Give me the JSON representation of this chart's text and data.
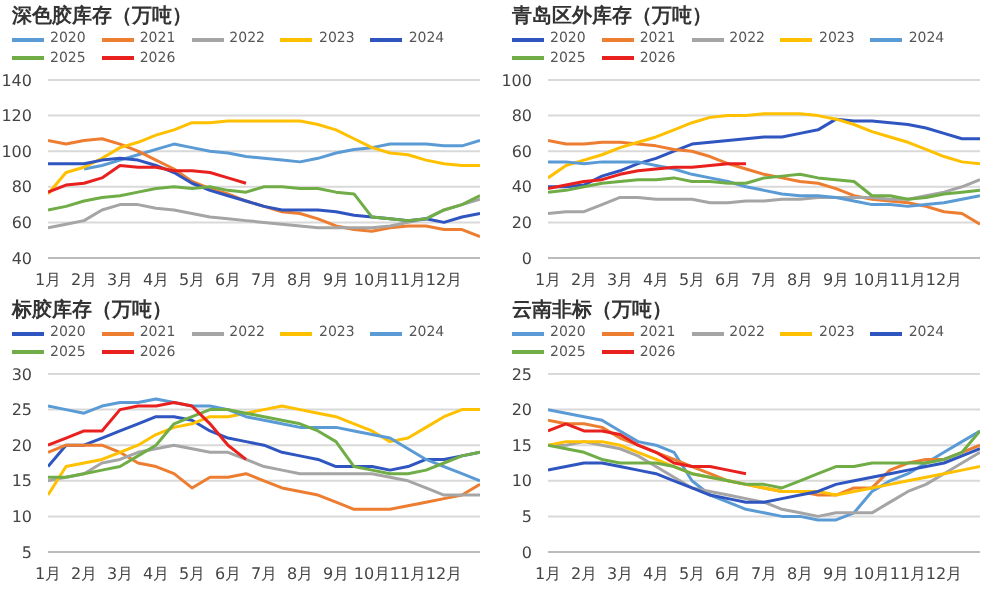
{
  "chart_data": [
    {
      "type": "line",
      "title": "深色胶库存（万吨）",
      "legend": "top",
      "grid": "y",
      "marker": "none",
      "line_style": "solid",
      "x": [
        1,
        1.5,
        2,
        2.5,
        3,
        3.5,
        4,
        4.5,
        5,
        5.5,
        6,
        6.5,
        7,
        7.5,
        8,
        8.5,
        9,
        9.5,
        10,
        10.5,
        11,
        11.5,
        12,
        12.5,
        13
      ],
      "xlim": [
        1,
        13
      ],
      "xticks": [
        {
          "value": 1,
          "label": "1月"
        },
        {
          "value": 2,
          "label": "2月"
        },
        {
          "value": 3,
          "label": "3月"
        },
        {
          "value": 4,
          "label": "4月"
        },
        {
          "value": 5,
          "label": "5月"
        },
        {
          "value": 6,
          "label": "6月"
        },
        {
          "value": 7,
          "label": "7月"
        },
        {
          "value": 8,
          "label": "8月"
        },
        {
          "value": 9,
          "label": "9月"
        },
        {
          "value": 10,
          "label": "10月"
        },
        {
          "value": 11,
          "label": "11月"
        },
        {
          "value": 12,
          "label": "12月"
        }
      ],
      "ylim": [
        40,
        140
      ],
      "yticks": [
        40,
        60,
        80,
        100,
        120,
        140
      ],
      "series": [
        {
          "name": "2020",
          "color": "#5b9bd5",
          "values": [
            null,
            null,
            90,
            92,
            95,
            98,
            101,
            104,
            102,
            100,
            99,
            97,
            96,
            95,
            94,
            96,
            99,
            101,
            102,
            104,
            104,
            104,
            103,
            103,
            106
          ]
        },
        {
          "name": "2021",
          "color": "#ed7d31",
          "values": [
            106,
            104,
            106,
            107,
            104,
            100,
            95,
            90,
            83,
            79,
            76,
            72,
            69,
            66,
            65,
            62,
            58,
            56,
            55,
            57,
            58,
            58,
            56,
            56,
            52
          ]
        },
        {
          "name": "2022",
          "color": "#a5a5a5",
          "values": [
            57,
            59,
            61,
            67,
            70,
            70,
            68,
            67,
            65,
            63,
            62,
            61,
            60,
            59,
            58,
            57,
            57,
            57,
            57,
            58,
            60,
            62,
            67,
            70,
            73
          ]
        },
        {
          "name": "2023",
          "color": "#ffc000",
          "values": [
            76,
            88,
            91,
            96,
            102,
            105,
            109,
            112,
            116,
            116,
            117,
            117,
            117,
            117,
            117,
            115,
            112,
            107,
            102,
            99,
            98,
            95,
            93,
            92,
            92
          ]
        },
        {
          "name": "2024",
          "color": "#2f55c0",
          "values": [
            93,
            93,
            93,
            95,
            96,
            95,
            92,
            88,
            82,
            78,
            75,
            72,
            69,
            67,
            67,
            67,
            66,
            64,
            63,
            62,
            61,
            62,
            60,
            63,
            65
          ]
        },
        {
          "name": "2025",
          "color": "#70ad47",
          "values": [
            67,
            69,
            72,
            74,
            75,
            77,
            79,
            80,
            79,
            80,
            78,
            77,
            80,
            80,
            79,
            79,
            77,
            76,
            63,
            62,
            61,
            62,
            67,
            70,
            75
          ]
        },
        {
          "name": "2026",
          "color": "#e8201e",
          "x": [
            1,
            1.5,
            2,
            2.5,
            3,
            3.5,
            4,
            4.5,
            5,
            5.5,
            6,
            6.5
          ],
          "values": [
            77,
            81,
            82,
            85,
            92,
            91,
            91,
            89,
            89,
            88,
            85,
            82
          ]
        }
      ]
    },
    {
      "type": "line",
      "title": "青岛区外库存（万吨）",
      "legend": "top",
      "grid": "y",
      "marker": "none",
      "line_style": "solid",
      "x": [
        1,
        1.5,
        2,
        2.5,
        3,
        3.5,
        4,
        4.5,
        5,
        5.5,
        6,
        6.5,
        7,
        7.5,
        8,
        8.5,
        9,
        9.5,
        10,
        10.5,
        11,
        11.5,
        12,
        12.5,
        13
      ],
      "xlim": [
        1,
        13
      ],
      "xticks": [
        {
          "value": 1,
          "label": "1月"
        },
        {
          "value": 2,
          "label": "2月"
        },
        {
          "value": 3,
          "label": "3月"
        },
        {
          "value": 4,
          "label": "4月"
        },
        {
          "value": 5,
          "label": "5月"
        },
        {
          "value": 6,
          "label": "6月"
        },
        {
          "value": 7,
          "label": "7月"
        },
        {
          "value": 8,
          "label": "8月"
        },
        {
          "value": 9,
          "label": "9月"
        },
        {
          "value": 10,
          "label": "10月"
        },
        {
          "value": 11,
          "label": "11月"
        },
        {
          "value": 12,
          "label": "12月"
        }
      ],
      "ylim": [
        0,
        100
      ],
      "yticks": [
        0,
        20,
        40,
        60,
        80,
        100
      ],
      "series": [
        {
          "name": "2020",
          "color": "#2f55c0",
          "values": [
            40,
            40,
            41,
            46,
            49,
            53,
            56,
            60,
            64,
            65,
            66,
            67,
            68,
            68,
            70,
            72,
            78,
            77,
            77,
            76,
            75,
            73,
            70,
            67,
            67
          ]
        },
        {
          "name": "2021",
          "color": "#ed7d31",
          "values": [
            66,
            64,
            64,
            65,
            65,
            64,
            63,
            61,
            60,
            57,
            53,
            50,
            47,
            45,
            43,
            42,
            39,
            35,
            33,
            32,
            31,
            29,
            26,
            25,
            19
          ]
        },
        {
          "name": "2022",
          "color": "#a5a5a5",
          "values": [
            25,
            26,
            26,
            30,
            34,
            34,
            33,
            33,
            33,
            31,
            31,
            32,
            32,
            33,
            33,
            34,
            34,
            34,
            34,
            33,
            33,
            35,
            37,
            40,
            44
          ]
        },
        {
          "name": "2023",
          "color": "#ffc000",
          "values": [
            45,
            52,
            55,
            58,
            62,
            65,
            68,
            72,
            76,
            79,
            80,
            80,
            81,
            81,
            81,
            80,
            78,
            75,
            71,
            68,
            65,
            61,
            57,
            54,
            53
          ]
        },
        {
          "name": "2024",
          "color": "#5b9bd5",
          "values": [
            54,
            54,
            53,
            54,
            54,
            54,
            52,
            50,
            47,
            45,
            43,
            40,
            38,
            36,
            35,
            35,
            34,
            32,
            30,
            30,
            29,
            30,
            31,
            33,
            35
          ]
        },
        {
          "name": "2025",
          "color": "#70ad47",
          "values": [
            37,
            38,
            40,
            42,
            43,
            44,
            44,
            45,
            43,
            43,
            42,
            42,
            45,
            46,
            47,
            45,
            44,
            43,
            35,
            35,
            33,
            34,
            36,
            37,
            38
          ]
        },
        {
          "name": "2026",
          "color": "#e8201e",
          "x": [
            1,
            1.5,
            2,
            2.5,
            3,
            3.5,
            4,
            4.5,
            5,
            5.5,
            6,
            6.5
          ],
          "values": [
            39,
            41,
            43,
            44,
            47,
            49,
            50,
            51,
            51,
            52,
            53,
            53
          ]
        }
      ]
    },
    {
      "type": "line",
      "title": "标胶库存（万吨）",
      "legend": "top",
      "grid": "y",
      "marker": "none",
      "line_style": "solid",
      "x": [
        1,
        1.5,
        2,
        2.5,
        3,
        3.5,
        4,
        4.5,
        5,
        5.5,
        6,
        6.5,
        7,
        7.5,
        8,
        8.5,
        9,
        9.5,
        10,
        10.5,
        11,
        11.5,
        12,
        12.5,
        13
      ],
      "xlim": [
        1,
        13
      ],
      "xticks": [
        {
          "value": 1,
          "label": "1月"
        },
        {
          "value": 2,
          "label": "2月"
        },
        {
          "value": 3,
          "label": "3月"
        },
        {
          "value": 4,
          "label": "4月"
        },
        {
          "value": 5,
          "label": "5月"
        },
        {
          "value": 6,
          "label": "6月"
        },
        {
          "value": 7,
          "label": "7月"
        },
        {
          "value": 8,
          "label": "8月"
        },
        {
          "value": 9,
          "label": "9月"
        },
        {
          "value": 10,
          "label": "10月"
        },
        {
          "value": 11,
          "label": "11月"
        },
        {
          "value": 12,
          "label": "12月"
        }
      ],
      "ylim": [
        5,
        30
      ],
      "yticks": [
        5,
        10,
        15,
        20,
        25,
        30
      ],
      "series": [
        {
          "name": "2020",
          "color": "#2f55c0",
          "values": [
            17,
            20,
            20,
            21,
            22,
            23,
            24,
            24,
            23.5,
            22,
            21,
            20.5,
            20,
            19,
            18.5,
            18,
            17,
            17,
            17,
            16.5,
            17,
            18,
            18,
            18.5,
            19
          ]
        },
        {
          "name": "2021",
          "color": "#ed7d31",
          "values": [
            19,
            20,
            20,
            20,
            19,
            17.5,
            17,
            16,
            14,
            15.5,
            15.5,
            16,
            15,
            14,
            13.5,
            13,
            12,
            11,
            11,
            11,
            11.5,
            12,
            12.5,
            13,
            14.5
          ]
        },
        {
          "name": "2022",
          "color": "#a5a5a5",
          "values": [
            15,
            15.5,
            16,
            17.5,
            18,
            19,
            19.5,
            20,
            19.5,
            19,
            19,
            18,
            17,
            16.5,
            16,
            16,
            16,
            16,
            16,
            15.5,
            15,
            14,
            13,
            13,
            13
          ]
        },
        {
          "name": "2023",
          "color": "#ffc000",
          "values": [
            13,
            17,
            17.5,
            18,
            19,
            20,
            21.5,
            22.5,
            23,
            24,
            24,
            24.5,
            25,
            25.5,
            25,
            24.5,
            24,
            23,
            22,
            20.5,
            21,
            22.5,
            24,
            25,
            25
          ]
        },
        {
          "name": "2024",
          "color": "#5b9bd5",
          "values": [
            25.5,
            25,
            24.5,
            25.5,
            26,
            26,
            26.5,
            26,
            25.5,
            25.5,
            25,
            24,
            23.5,
            23,
            22.5,
            22.5,
            22.5,
            22,
            21.5,
            21,
            19.5,
            18,
            17,
            16,
            15
          ]
        },
        {
          "name": "2025",
          "color": "#70ad47",
          "values": [
            15.5,
            15.5,
            16,
            16.5,
            17,
            18.5,
            20,
            23,
            24,
            25,
            25,
            24.5,
            24,
            23.5,
            23,
            22,
            20.5,
            17,
            16.5,
            16,
            16,
            16.5,
            17.5,
            18.5,
            19
          ]
        },
        {
          "name": "2026",
          "color": "#e8201e",
          "x": [
            1,
            1.5,
            2,
            2.5,
            3,
            3.5,
            4,
            4.5,
            5,
            5.5,
            6,
            6.5
          ],
          "values": [
            20,
            21,
            22,
            22,
            25,
            25.5,
            25.5,
            26,
            25.5,
            23,
            20,
            18
          ]
        }
      ]
    },
    {
      "type": "line",
      "title": "云南非标（万吨）",
      "legend": "top",
      "grid": "y",
      "marker": "none",
      "line_style": "solid",
      "x": [
        1,
        1.5,
        2,
        2.5,
        3,
        3.5,
        4,
        4.5,
        5,
        5.5,
        6,
        6.5,
        7,
        7.5,
        8,
        8.5,
        9,
        9.5,
        10,
        10.5,
        11,
        11.5,
        12,
        12.5,
        13
      ],
      "xlim": [
        1,
        13
      ],
      "xticks": [
        {
          "value": 1,
          "label": "1月"
        },
        {
          "value": 2,
          "label": "2月"
        },
        {
          "value": 3,
          "label": "3月"
        },
        {
          "value": 4,
          "label": "4月"
        },
        {
          "value": 5,
          "label": "5月"
        },
        {
          "value": 6,
          "label": "6月"
        },
        {
          "value": 7,
          "label": "7月"
        },
        {
          "value": 8,
          "label": "8月"
        },
        {
          "value": 9,
          "label": "9月"
        },
        {
          "value": 10,
          "label": "10月"
        },
        {
          "value": 11,
          "label": "11月"
        },
        {
          "value": 12,
          "label": "12月"
        }
      ],
      "ylim": [
        0,
        25
      ],
      "yticks": [
        0,
        5,
        10,
        15,
        20,
        25
      ],
      "series": [
        {
          "name": "2020",
          "color": "#5b9bd5",
          "values": [
            20,
            19.5,
            19,
            18.5,
            17,
            15.5,
            15,
            14,
            10,
            8,
            7,
            6,
            5.5,
            5,
            5,
            4.5,
            4.5,
            5.5,
            8.5,
            10,
            11,
            12.5,
            14,
            15.5,
            17
          ]
        },
        {
          "name": "2021",
          "color": "#ed7d31",
          "values": [
            18.5,
            18,
            18,
            17.5,
            16,
            15,
            14,
            13,
            12,
            11,
            10,
            9.5,
            9,
            8.5,
            8.5,
            8,
            8,
            9,
            9,
            11.5,
            12.5,
            13,
            13,
            14,
            15
          ]
        },
        {
          "name": "2022",
          "color": "#a5a5a5",
          "values": [
            15,
            15,
            15.5,
            15,
            14.5,
            13.5,
            12,
            10.5,
            9,
            8.5,
            8,
            7.5,
            7,
            6,
            5.5,
            5,
            5.5,
            5.5,
            5.5,
            7,
            8.5,
            9.5,
            11,
            12.5,
            14
          ]
        },
        {
          "name": "2023",
          "color": "#ffc000",
          "values": [
            15,
            15.5,
            15.5,
            15.5,
            15,
            14,
            13,
            12,
            11,
            10.5,
            10,
            9.5,
            9,
            8.5,
            8.5,
            8.5,
            8,
            8.5,
            9,
            9.5,
            10,
            10.5,
            11,
            11.5,
            12
          ]
        },
        {
          "name": "2024",
          "color": "#2f55c0",
          "values": [
            11.5,
            12,
            12.5,
            12.5,
            12,
            11.5,
            11,
            10,
            9,
            8,
            7.5,
            7,
            7,
            7.5,
            8,
            8.5,
            9.5,
            10,
            10.5,
            11,
            11.5,
            12,
            12.5,
            13.5,
            14.5
          ]
        },
        {
          "name": "2025",
          "color": "#70ad47",
          "values": [
            15,
            14.5,
            14,
            13,
            12.5,
            12.5,
            12.5,
            12,
            11,
            10.5,
            10,
            9.5,
            9.5,
            9,
            10,
            11,
            12,
            12,
            12.5,
            12.5,
            12.5,
            12.5,
            13,
            14,
            17
          ]
        },
        {
          "name": "2026",
          "color": "#e8201e",
          "x": [
            1,
            1.5,
            2,
            2.5,
            3,
            3.5,
            4,
            4.5,
            5,
            5.5,
            6,
            6.5
          ],
          "values": [
            17,
            18,
            17,
            17,
            16.5,
            15,
            14,
            12.5,
            12,
            12,
            11.5,
            11
          ]
        }
      ]
    }
  ]
}
